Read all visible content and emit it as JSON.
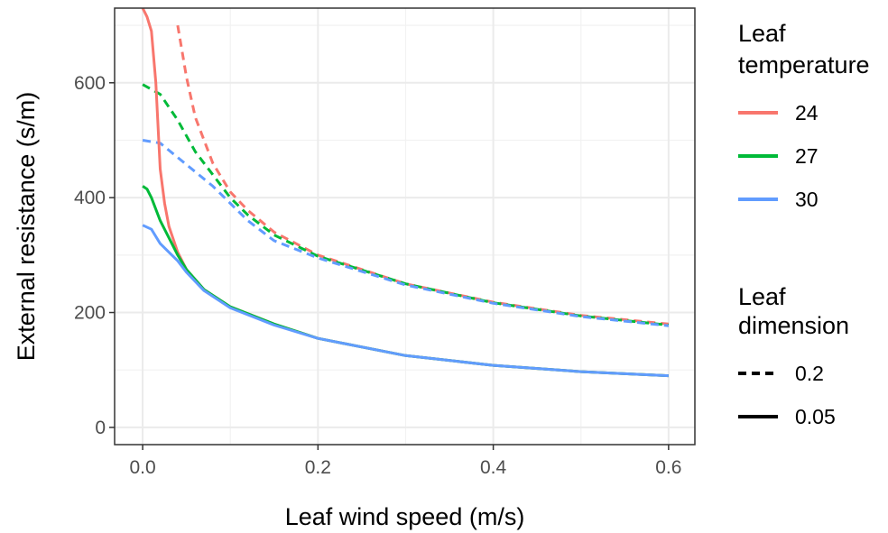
{
  "chart_data": {
    "type": "line",
    "xlabel": "Leaf wind speed (m/s)",
    "ylabel": "External resistance (s/m)",
    "xlim": [
      -0.032,
      0.63
    ],
    "ylim": [
      -30,
      730
    ],
    "x_ticks": [
      0.0,
      0.2,
      0.4,
      0.6
    ],
    "x_tick_labels": [
      "0.0",
      "0.2",
      "0.4",
      "0.6"
    ],
    "y_ticks": [
      0,
      200,
      400,
      600
    ],
    "y_tick_labels": [
      "0",
      "200",
      "400",
      "600"
    ],
    "grid": true,
    "legend": [
      {
        "title_lines": [
          "Leaf",
          "temperature"
        ],
        "kind": "color",
        "items": [
          {
            "label": "24",
            "color": "#F8766D"
          },
          {
            "label": "27",
            "color": "#00BA38"
          },
          {
            "label": "30",
            "color": "#619CFF"
          }
        ]
      },
      {
        "title_lines": [
          "Leaf",
          "dimension"
        ],
        "kind": "linetype",
        "items": [
          {
            "label": "0.2",
            "dash": "dashed"
          },
          {
            "label": "0.05",
            "dash": "solid"
          }
        ]
      }
    ],
    "series": [
      {
        "name": "24 / 0.2",
        "temperature": "24",
        "dimension": "0.2",
        "color": "#F8766D",
        "dash": "dashed",
        "x": [
          0.04,
          0.05,
          0.06,
          0.08,
          0.1,
          0.12,
          0.15,
          0.2,
          0.3,
          0.4,
          0.5,
          0.6
        ],
        "y": [
          700,
          610,
          540,
          460,
          410,
          378,
          340,
          300,
          250,
          218,
          195,
          180
        ]
      },
      {
        "name": "27 / 0.2",
        "temperature": "27",
        "dimension": "0.2",
        "color": "#00BA38",
        "dash": "dashed",
        "x": [
          0.0,
          0.02,
          0.04,
          0.06,
          0.08,
          0.1,
          0.12,
          0.15,
          0.2,
          0.3,
          0.4,
          0.5,
          0.6
        ],
        "y": [
          597,
          580,
          535,
          480,
          440,
          400,
          370,
          335,
          298,
          250,
          217,
          194,
          178
        ]
      },
      {
        "name": "30 / 0.2",
        "temperature": "30",
        "dimension": "0.2",
        "color": "#619CFF",
        "dash": "dashed",
        "x": [
          0.0,
          0.02,
          0.04,
          0.06,
          0.08,
          0.1,
          0.12,
          0.15,
          0.2,
          0.3,
          0.4,
          0.5,
          0.6
        ],
        "y": [
          500,
          495,
          470,
          445,
          420,
          390,
          360,
          325,
          295,
          248,
          216,
          193,
          177
        ]
      },
      {
        "name": "24 / 0.05",
        "temperature": "24",
        "dimension": "0.05",
        "color": "#F8766D",
        "dash": "solid",
        "x": [
          0.0,
          0.005,
          0.01,
          0.015,
          0.02,
          0.025,
          0.03,
          0.04,
          0.05,
          0.07,
          0.1,
          0.15,
          0.2,
          0.3,
          0.4,
          0.5,
          0.6
        ],
        "y": [
          730,
          715,
          690,
          600,
          450,
          390,
          350,
          305,
          275,
          240,
          210,
          180,
          155,
          125,
          108,
          97,
          90
        ]
      },
      {
        "name": "27 / 0.05",
        "temperature": "27",
        "dimension": "0.05",
        "color": "#00BA38",
        "dash": "solid",
        "x": [
          0.0,
          0.005,
          0.01,
          0.02,
          0.03,
          0.04,
          0.05,
          0.07,
          0.1,
          0.15,
          0.2,
          0.3,
          0.4,
          0.5,
          0.6
        ],
        "y": [
          420,
          415,
          400,
          360,
          330,
          300,
          275,
          240,
          210,
          180,
          155,
          125,
          108,
          97,
          90
        ]
      },
      {
        "name": "30 / 0.05",
        "temperature": "30",
        "dimension": "0.05",
        "color": "#619CFF",
        "dash": "solid",
        "x": [
          0.0,
          0.01,
          0.02,
          0.03,
          0.04,
          0.05,
          0.07,
          0.1,
          0.15,
          0.2,
          0.3,
          0.4,
          0.5,
          0.6
        ],
        "y": [
          352,
          345,
          320,
          305,
          290,
          270,
          238,
          208,
          178,
          155,
          125,
          108,
          97,
          90
        ]
      }
    ]
  }
}
